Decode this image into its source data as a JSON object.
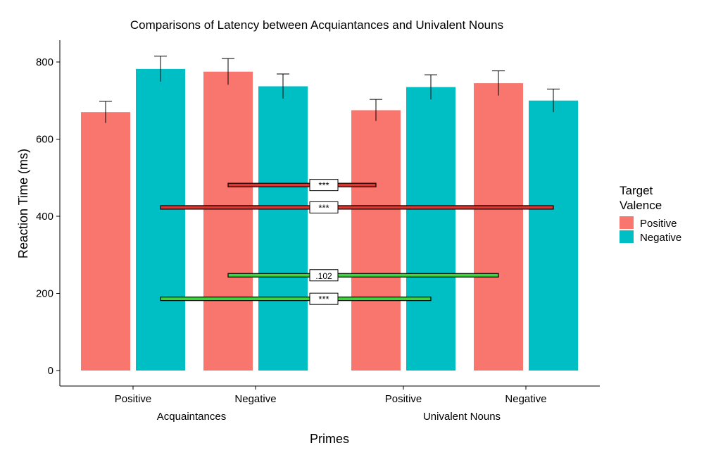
{
  "chart_data": {
    "type": "bar",
    "title": "Comparisons of Latency between Acquiantances and Univalent Nouns",
    "xlabel": "Primes",
    "ylabel": "Reaction Time (ms)",
    "ylim": [
      0,
      860
    ],
    "yticks": [
      0,
      200,
      400,
      600,
      800
    ],
    "groups": [
      {
        "label": "Acquaintances",
        "categories": [
          "Positive",
          "Negative"
        ]
      },
      {
        "label": "Univalent Nouns",
        "categories": [
          "Positive",
          "Negative"
        ]
      }
    ],
    "legend": {
      "title_line1": "Target",
      "title_line2": "Valence",
      "placement": "right"
    },
    "series": [
      {
        "name": "Positive",
        "color": "#F8766D",
        "values": [
          670,
          775,
          675,
          745
        ],
        "errors": [
          28,
          34,
          28,
          32
        ]
      },
      {
        "name": "Negative",
        "color": "#00BFC4",
        "values": [
          782,
          737,
          735,
          700
        ],
        "errors": [
          33,
          32,
          32,
          30
        ]
      }
    ],
    "annotations": [
      {
        "label": "***",
        "y": 481,
        "x_from": "Acquaintances / Negative / Positive",
        "x_to": "Univalent Nouns / Positive / Positive",
        "color": "#E8312A"
      },
      {
        "label": "***",
        "y": 423,
        "x_from": "Acquaintances / Positive / Negative",
        "x_to": "Univalent Nouns / Negative / Negative",
        "color": "#E8312A"
      },
      {
        "label": ".102",
        "y": 247,
        "x_from": "Acquaintances / Negative / Positive",
        "x_to": "Univalent Nouns / Negative / Positive",
        "color": "#38D838"
      },
      {
        "label": "***",
        "y": 186,
        "x_from": "Acquaintances / Positive / Negative",
        "x_to": "Univalent Nouns / Positive / Negative",
        "color": "#38D838"
      }
    ]
  }
}
